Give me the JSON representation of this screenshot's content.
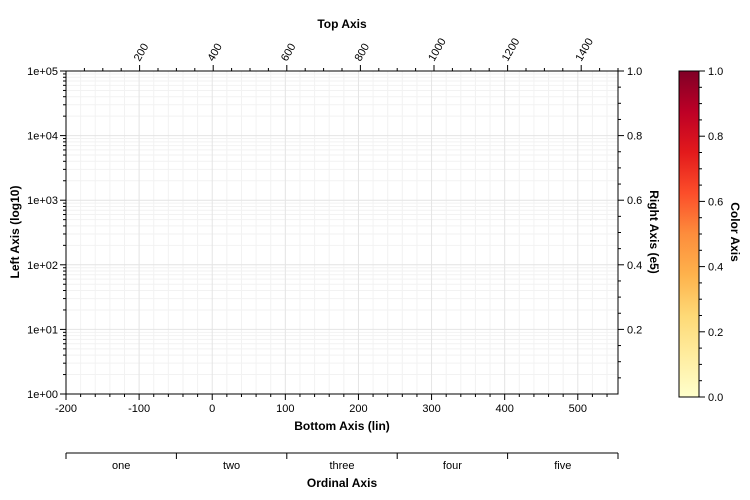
{
  "chart_data": {
    "type": "scatter",
    "series": [],
    "grid": true,
    "axes": {
      "top": {
        "title": "Top Axis",
        "range": [
          0,
          1500
        ],
        "ticks": [
          200,
          400,
          600,
          800,
          1000,
          1200,
          1400
        ],
        "tick_labels": [
          "200",
          "400",
          "600",
          "800",
          "1000",
          "1200",
          "1400"
        ]
      },
      "bottom": {
        "title": "Bottom Axis (lin)",
        "range": [
          -200,
          555
        ],
        "ticks": [
          -200,
          -100,
          0,
          100,
          200,
          300,
          400,
          500
        ],
        "tick_labels": [
          "-200",
          "-100",
          "0",
          "100",
          "200",
          "300",
          "400",
          "500"
        ]
      },
      "left": {
        "title": "Left Axis (log10)",
        "scale": "log",
        "range": [
          1,
          100000
        ],
        "ticks": [
          1,
          10,
          100,
          1000,
          10000,
          100000
        ],
        "tick_labels": [
          "1e+00",
          "1e+01",
          "1e+02",
          "1e+03",
          "1e+04",
          "1e+05"
        ]
      },
      "right": {
        "title": "Right Axis (e5)",
        "range": [
          0,
          1.0
        ],
        "ticks": [
          0.2,
          0.4,
          0.6,
          0.8,
          1.0
        ],
        "tick_labels": [
          "0.2",
          "0.4",
          "0.6",
          "0.8",
          "1.0"
        ]
      },
      "ordinal": {
        "title": "Ordinal Axis",
        "categories": [
          "one",
          "two",
          "three",
          "four",
          "five"
        ]
      },
      "color": {
        "title": "Color Axis",
        "range": [
          0,
          1.0
        ],
        "ticks": [
          0,
          0.2,
          0.4,
          0.6,
          0.8,
          1.0
        ],
        "tick_labels": [
          "0.0",
          "0.2",
          "0.4",
          "0.6",
          "0.8",
          "1.0"
        ],
        "colormap": [
          "#ffffcc",
          "#ffeda0",
          "#fed976",
          "#feb24c",
          "#fd8d3c",
          "#fc4e2a",
          "#e31a1c",
          "#bd0026",
          "#800026"
        ]
      }
    }
  }
}
